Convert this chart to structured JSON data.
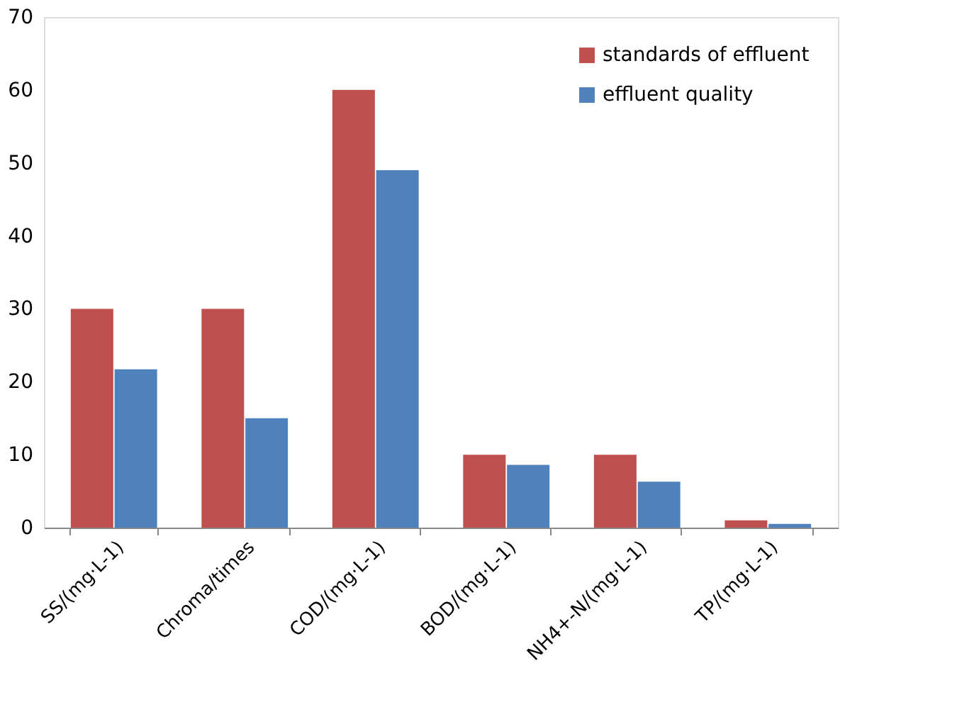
{
  "chart_data": {
    "type": "bar",
    "categories": [
      "SS/(mg·L-1)",
      "Chroma/times",
      "COD/(mg·L-1)",
      "BOD/(mg·L-1)",
      "NH4+-N/(mg·L-1)",
      "TP/(mg·L-1)"
    ],
    "series": [
      {
        "name": "standards of effluent",
        "color": "#c0504d",
        "values": [
          30,
          30,
          60,
          10,
          10,
          1
        ]
      },
      {
        "name": "effluent quality",
        "color": "#4f81bd",
        "values": [
          21.7,
          15,
          49,
          8.6,
          6.3,
          0.5
        ]
      }
    ],
    "ylim": [
      0,
      70
    ],
    "yticks": [
      0,
      10,
      20,
      30,
      40,
      50,
      60,
      70
    ],
    "grid": false,
    "legend": "top right"
  }
}
